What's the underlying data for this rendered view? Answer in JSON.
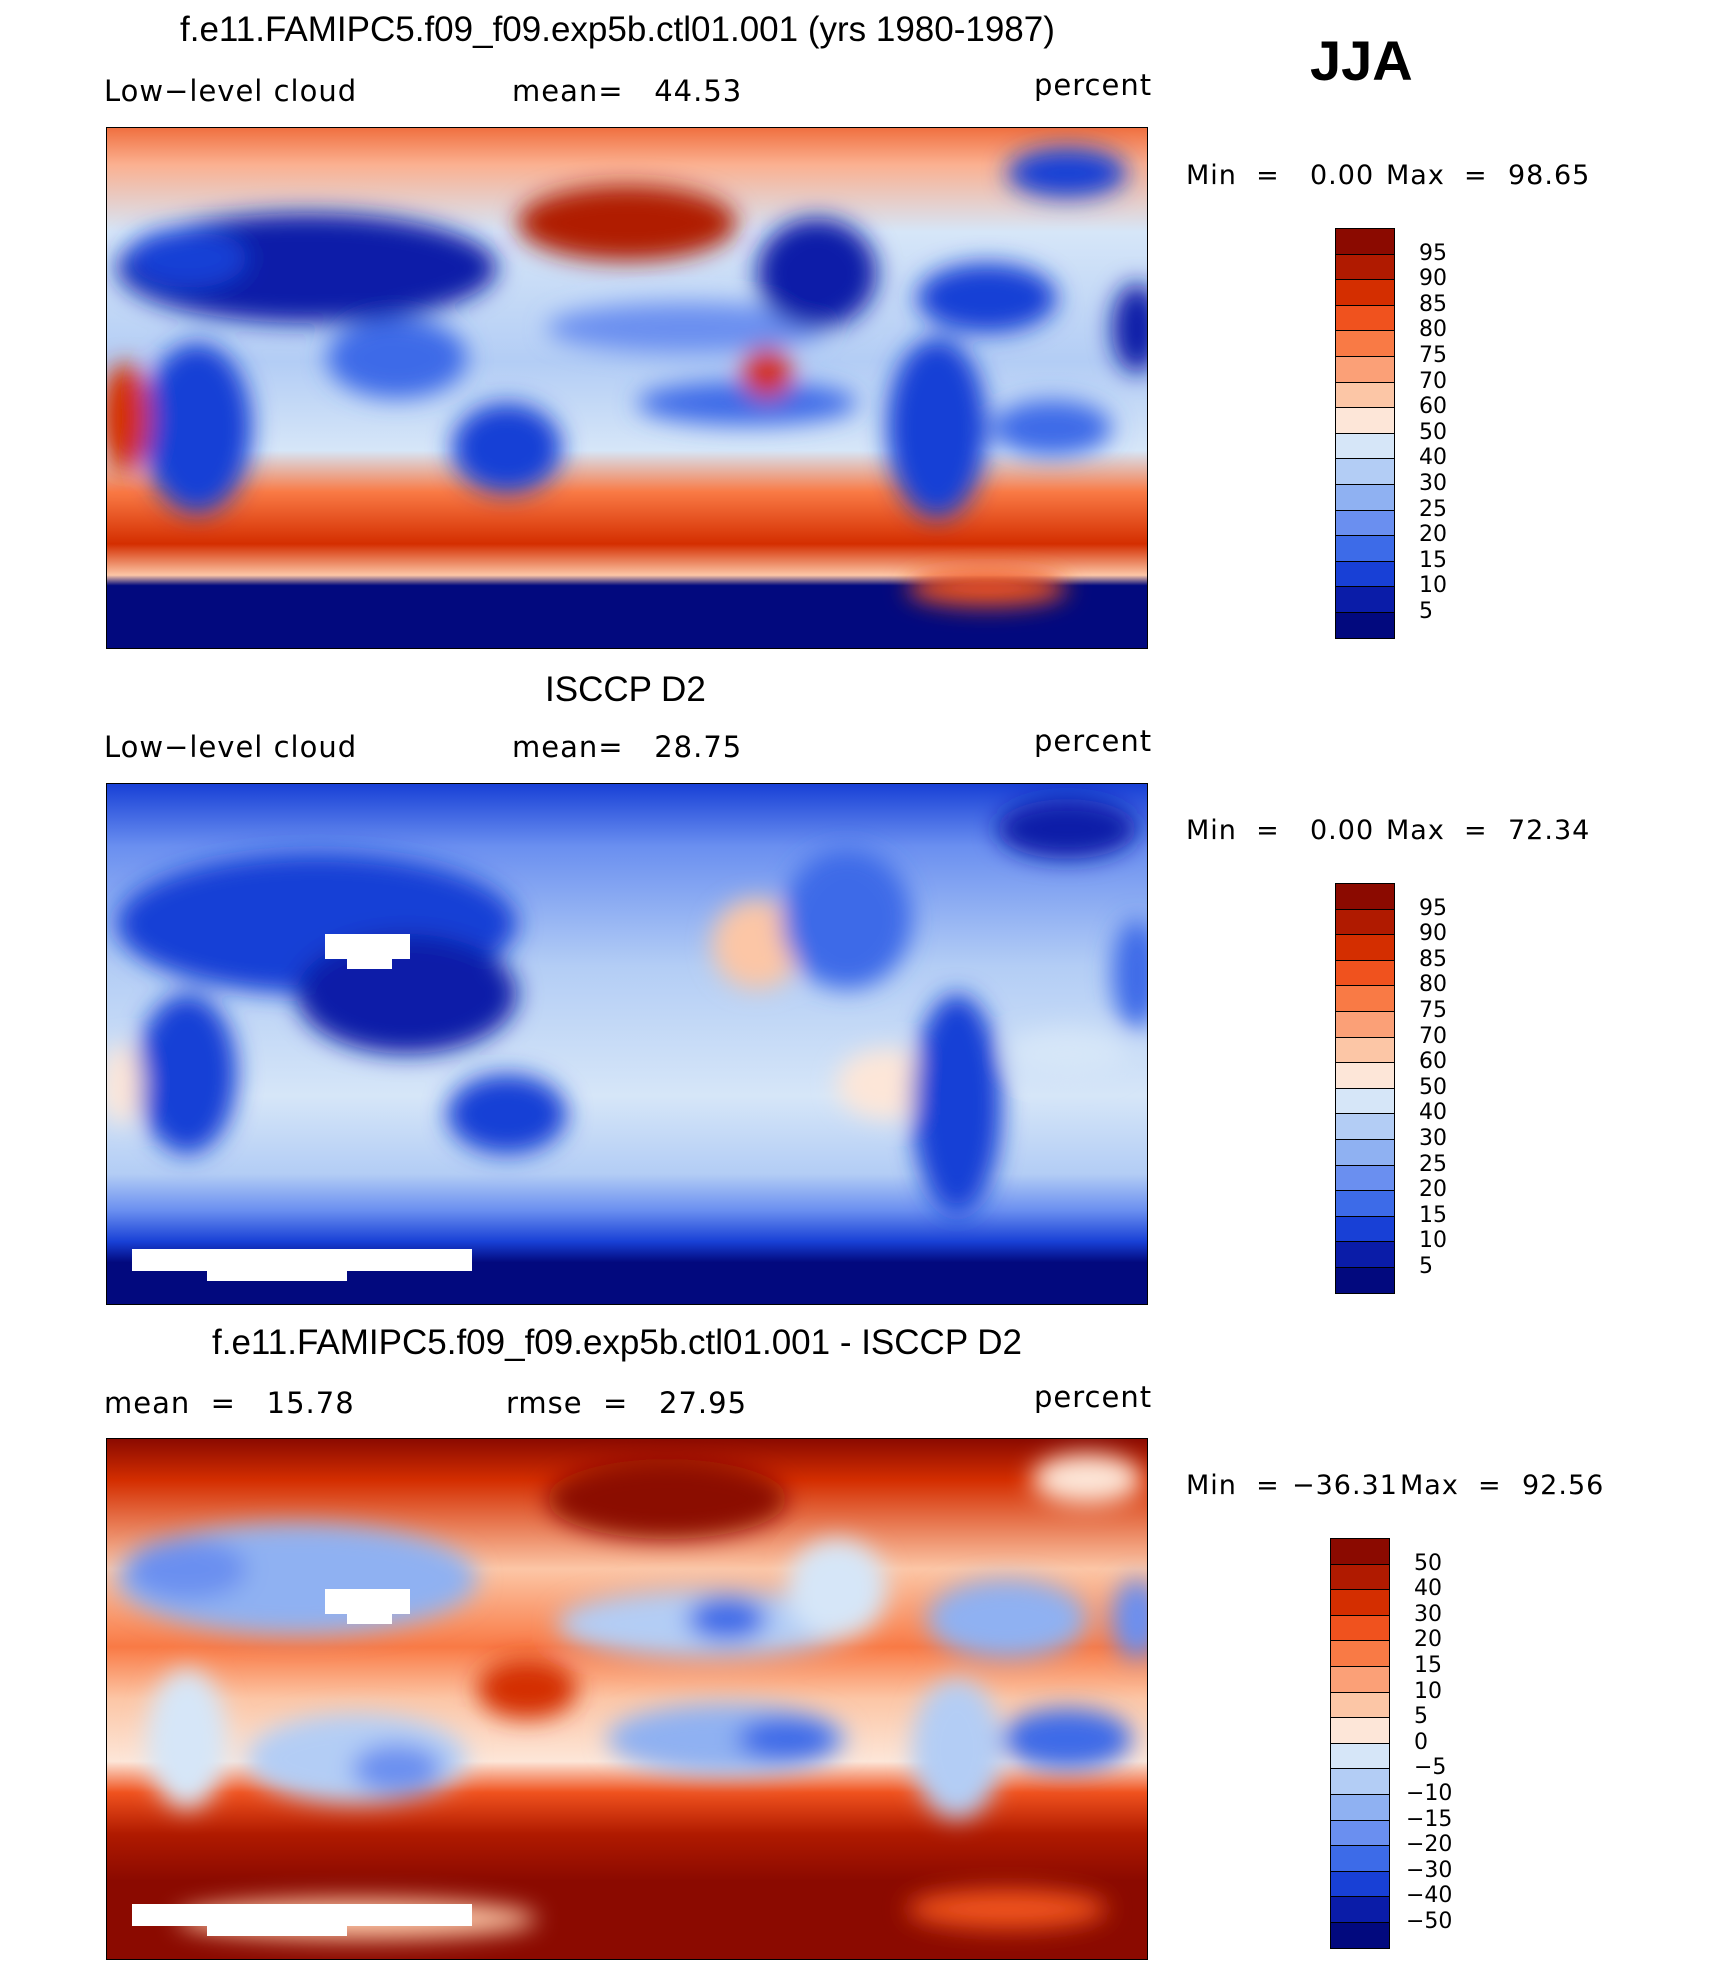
{
  "season": "JJA",
  "panels": [
    {
      "title": "f.e11.FAMIPC5.f09_f09.exp5b.ctl01.001 (yrs 1980-1987)",
      "left_label": "Low−level cloud",
      "mid_label": "mean=   44.53",
      "units": "percent",
      "min_label": "Min  =",
      "min_value": "0.00",
      "max_label": "Max  =",
      "max_value": "98.65"
    },
    {
      "title": "ISCCP D2",
      "left_label": "Low−level cloud",
      "mid_label": "mean=   28.75",
      "units": "percent",
      "min_label": "Min  =",
      "min_value": "0.00",
      "max_label": "Max  =",
      "max_value": "72.34"
    },
    {
      "title": "f.e11.FAMIPC5.f09_f09.exp5b.ctl01.001 - ISCCP D2",
      "left_label": "mean  =   15.78",
      "mid_label": "rmse  =   27.95",
      "units": "percent",
      "min_label": "Min  =",
      "min_value": "−36.31",
      "max_label": "Max  =",
      "max_value": "92.56"
    }
  ],
  "colorbars": [
    {
      "labels": [
        "95",
        "90",
        "85",
        "80",
        "75",
        "70",
        "60",
        "50",
        "40",
        "30",
        "25",
        "20",
        "15",
        "10",
        "5"
      ],
      "colors": [
        "#8b0a00",
        "#b01a00",
        "#d42e00",
        "#f0521e",
        "#f97a45",
        "#fba077",
        "#fcc6a6",
        "#fde6d8",
        "#d6e6f8",
        "#b3cdf5",
        "#8fb1f2",
        "#6a8ff0",
        "#3d6be8",
        "#1840d6",
        "#0a1ca8",
        "#02097e"
      ]
    },
    {
      "labels": [
        "95",
        "90",
        "85",
        "80",
        "75",
        "70",
        "60",
        "50",
        "40",
        "30",
        "25",
        "20",
        "15",
        "10",
        "5"
      ],
      "colors": [
        "#8b0a00",
        "#b01a00",
        "#d42e00",
        "#f0521e",
        "#f97a45",
        "#fba077",
        "#fcc6a6",
        "#fde6d8",
        "#d6e6f8",
        "#b3cdf5",
        "#8fb1f2",
        "#6a8ff0",
        "#3d6be8",
        "#1840d6",
        "#0a1ca8",
        "#02097e"
      ]
    },
    {
      "labels": [
        "50",
        "40",
        "30",
        "20",
        "15",
        "10",
        "5",
        "0",
        "−5",
        "−10",
        "−15",
        "−20",
        "−30",
        "−40",
        "−50"
      ],
      "colors": [
        "#8b0a00",
        "#b01a00",
        "#d42e00",
        "#f0521e",
        "#f97a45",
        "#fba077",
        "#fcc6a6",
        "#fde6d8",
        "#d6e6f8",
        "#b3cdf5",
        "#8fb1f2",
        "#6a8ff0",
        "#3d6be8",
        "#1840d6",
        "#0a1ca8",
        "#02097e"
      ]
    }
  ],
  "chart_data": [
    {
      "type": "heatmap",
      "title": "f.e11.FAMIPC5.f09_f09.exp5b.ctl01.001 (yrs 1980-1987)",
      "variable": "Low−level cloud",
      "units": "percent",
      "mean": 44.53,
      "min": 0.0,
      "max": 98.65,
      "levels": [
        5,
        10,
        15,
        20,
        25,
        30,
        40,
        50,
        60,
        70,
        75,
        80,
        85,
        90,
        95
      ]
    },
    {
      "type": "heatmap",
      "title": "ISCCP D2",
      "variable": "Low−level cloud",
      "units": "percent",
      "mean": 28.75,
      "min": 0.0,
      "max": 72.34,
      "levels": [
        5,
        10,
        15,
        20,
        25,
        30,
        40,
        50,
        60,
        70,
        75,
        80,
        85,
        90,
        95
      ]
    },
    {
      "type": "heatmap",
      "title": "f.e11.FAMIPC5.f09_f09.exp5b.ctl01.001 - ISCCP D2",
      "units": "percent",
      "mean": 15.78,
      "rmse": 27.95,
      "min": -36.31,
      "max": 92.56,
      "levels": [
        -50,
        -40,
        -30,
        -20,
        -15,
        -10,
        -5,
        0,
        5,
        10,
        15,
        20,
        30,
        40,
        50
      ]
    }
  ]
}
